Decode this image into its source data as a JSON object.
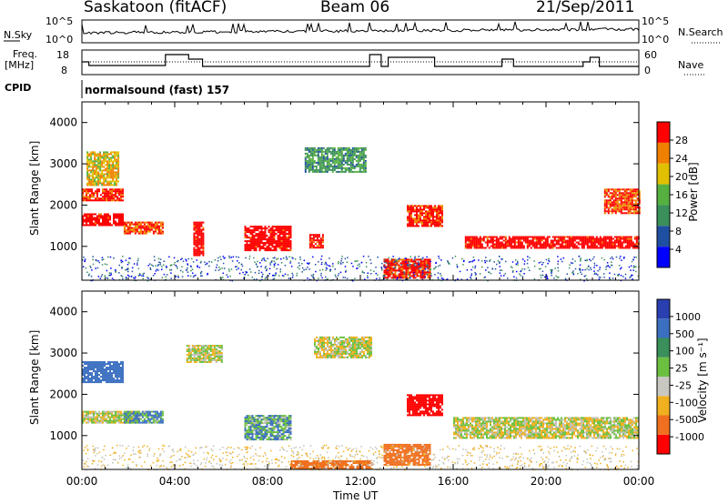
{
  "header": {
    "station": "Saskatoon (fitACF)",
    "beam": "Beam 06",
    "date": "21/Sep/2011"
  },
  "noise_panel": {
    "left_label": "N.Sky",
    "left_ticks": [
      "10^5",
      "10^0"
    ],
    "right_label": "N.Search",
    "right_ticks": [
      "10^5",
      "10^0"
    ]
  },
  "freq_panel": {
    "left_label_1": "Freq.",
    "left_label_2": "[MHz]",
    "left_ticks": [
      "18",
      "8"
    ],
    "right_label": "Nave",
    "right_ticks": [
      "60",
      "0"
    ]
  },
  "cpid": {
    "label": "CPID",
    "value": "normalsound (fast) 157"
  },
  "colors": {
    "power_scale": [
      "#0000ff",
      "#1f4fa0",
      "#3a8f5a",
      "#55b040",
      "#e0c000",
      "#f08000",
      "#ff0000"
    ],
    "velocity_scale": [
      "#2a3fb0",
      "#3b6fc0",
      "#3a8f5a",
      "#6cc040",
      "#c8c8c0",
      "#f0b020",
      "#f07020",
      "#ff0000"
    ],
    "ground_scatter": "#c0c0b8"
  },
  "chart_data": [
    {
      "type": "heatmap",
      "name": "power",
      "ylabel": "Slant Range [km]",
      "xlabel": "Time UT",
      "y_ticks": [
        "4000",
        "3000",
        "2000",
        "1000"
      ],
      "x_ticks": [
        "00:00",
        "04:00",
        "08:00",
        "12:00",
        "16:00",
        "20:00",
        "00:00"
      ],
      "ylim": [
        180,
        4500
      ],
      "xlim_hours": [
        0,
        24
      ],
      "colorbar": {
        "label": "Power [dB]",
        "ticks": [
          "28",
          "24",
          "20",
          "16",
          "12",
          "8",
          "4"
        ],
        "range": [
          0,
          30
        ]
      },
      "features": [
        {
          "t": [
            0.0,
            1.8
          ],
          "r": [
            1500,
            1800
          ],
          "level": 30
        },
        {
          "t": [
            0.0,
            1.8
          ],
          "r": [
            2100,
            2400
          ],
          "level": 28
        },
        {
          "t": [
            0.2,
            1.6
          ],
          "r": [
            2500,
            3300
          ],
          "level": 20
        },
        {
          "t": [
            1.8,
            3.5
          ],
          "r": [
            1300,
            1600
          ],
          "level": 26
        },
        {
          "t": [
            4.8,
            5.2
          ],
          "r": [
            800,
            1600
          ],
          "level": 30
        },
        {
          "t": [
            7.0,
            9.0
          ],
          "r": [
            900,
            1500
          ],
          "level": 30
        },
        {
          "t": [
            9.8,
            10.4
          ],
          "r": [
            950,
            1300
          ],
          "level": 29
        },
        {
          "t": [
            9.6,
            12.2
          ],
          "r": [
            2800,
            3400
          ],
          "level": 12
        },
        {
          "t": [
            13.0,
            15.0
          ],
          "r": [
            250,
            700
          ],
          "level": 28
        },
        {
          "t": [
            14.0,
            15.5
          ],
          "r": [
            1500,
            2000
          ],
          "level": 28
        },
        {
          "t": [
            16.5,
            24.0
          ],
          "r": [
            950,
            1250
          ],
          "level": 30
        },
        {
          "t": [
            22.5,
            24.0
          ],
          "r": [
            1800,
            2400
          ],
          "level": 26
        }
      ]
    },
    {
      "type": "heatmap",
      "name": "velocity",
      "ylabel": "Slant Range [km]",
      "xlabel": "Time UT",
      "y_ticks": [
        "4000",
        "3000",
        "2000",
        "1000"
      ],
      "x_ticks": [
        "00:00",
        "04:00",
        "08:00",
        "12:00",
        "16:00",
        "20:00",
        "00:00"
      ],
      "ylim": [
        180,
        4500
      ],
      "xlim_hours": [
        0,
        24
      ],
      "colorbar": {
        "label": "Velocity [m s⁻¹]",
        "ticks": [
          "1000",
          "500",
          "100",
          "25",
          "-25",
          "-100",
          "-500",
          "-1000"
        ],
        "range": [
          -1000,
          1000
        ]
      },
      "features": [
        {
          "t": [
            0.0,
            2.5
          ],
          "r": [
            1300,
            1600
          ],
          "level": 0
        },
        {
          "t": [
            0.0,
            1.8
          ],
          "r": [
            2300,
            2800
          ],
          "level": 300
        },
        {
          "t": [
            1.8,
            3.5
          ],
          "r": [
            1300,
            1600
          ],
          "level": 120
        },
        {
          "t": [
            4.5,
            6.0
          ],
          "r": [
            2800,
            3200
          ],
          "level": 0
        },
        {
          "t": [
            7.0,
            9.0
          ],
          "r": [
            900,
            1500
          ],
          "level": 100
        },
        {
          "t": [
            10.0,
            12.5
          ],
          "r": [
            2900,
            3400
          ],
          "level": 0
        },
        {
          "t": [
            14.0,
            15.5
          ],
          "r": [
            1500,
            2000
          ],
          "level": -600
        },
        {
          "t": [
            16.0,
            24.0
          ],
          "r": [
            950,
            1450
          ],
          "level": 0
        },
        {
          "t": [
            9.0,
            12.5
          ],
          "r": [
            200,
            400
          ],
          "level": -200
        },
        {
          "t": [
            13.0,
            15.0
          ],
          "r": [
            300,
            800
          ],
          "level": -200
        }
      ]
    }
  ]
}
